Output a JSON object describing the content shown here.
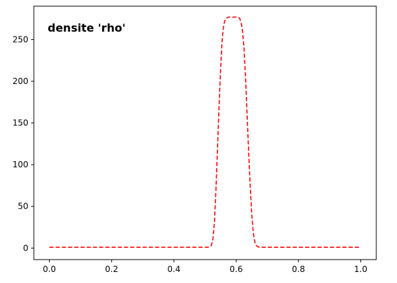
{
  "chart_data": {
    "type": "line",
    "annotation": "densite 'rho'",
    "xlim": [
      -0.05,
      1.05
    ],
    "ylim": [
      -13.8,
      290
    ],
    "x_ticks": [
      0.0,
      0.2,
      0.4,
      0.6,
      0.8,
      1.0
    ],
    "x_tick_labels": [
      "0.0",
      "0.2",
      "0.4",
      "0.6",
      "0.8",
      "1.0"
    ],
    "y_ticks": [
      0,
      50,
      100,
      150,
      200,
      250
    ],
    "y_tick_labels": [
      "0",
      "50",
      "100",
      "150",
      "200",
      "250"
    ],
    "grid": false,
    "series": [
      {
        "color": "#ff0000",
        "line_style": "dashed",
        "x": [
          0.0,
          0.1,
          0.2,
          0.3,
          0.4,
          0.5,
          0.51,
          0.52,
          0.525,
          0.53,
          0.535,
          0.54,
          0.545,
          0.55,
          0.555,
          0.56,
          0.565,
          0.57,
          0.575,
          0.58,
          0.59,
          0.6,
          0.61,
          0.615,
          0.62,
          0.625,
          0.63,
          0.635,
          0.64,
          0.645,
          0.65,
          0.655,
          0.66,
          0.665,
          0.67,
          0.675,
          0.68,
          0.7,
          0.8,
          0.9,
          1.0
        ],
        "y": [
          1,
          1,
          1,
          1,
          1,
          1,
          1,
          3,
          10,
          30,
          70,
          120,
          170,
          215,
          250,
          268,
          274,
          276,
          277,
          277,
          277,
          277,
          276,
          272,
          262,
          240,
          205,
          160,
          115,
          75,
          40,
          18,
          7,
          3,
          1.5,
          1,
          1,
          1,
          1,
          1,
          1
        ]
      }
    ]
  }
}
